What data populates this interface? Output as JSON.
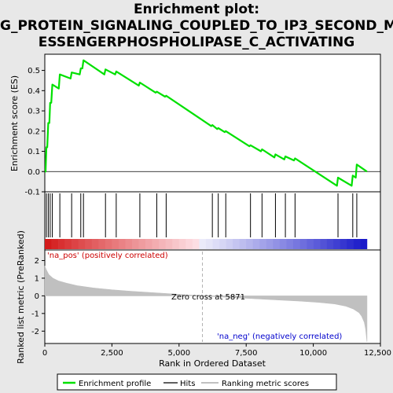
{
  "title_lines": [
    "Enrichment plot:",
    "G_PROTEIN_SIGNALING_COUPLED_TO_IP3_SECOND_M",
    "ESSENGERPHOSPHOLIPASE_C_ACTIVATING"
  ],
  "colors": {
    "enrichment": "#00e000",
    "hits": "#000000",
    "ranking": "#c0c0c0",
    "pos_label": "#cc0000",
    "neg_label": "#0000cc",
    "zero_cross_line": "#b0b0b0"
  },
  "annotations": {
    "pos_label": "'na_pos' (positively correlated)",
    "neg_label": "'na_neg' (negatively correlated)",
    "zero_cross": "Zero cross at 5871"
  },
  "legend": {
    "enrichment_label": "Enrichment profile",
    "hits_label": "Hits",
    "ranking_label": "Ranking metric scores"
  },
  "chart_data": [
    {
      "type": "line",
      "name": "enrichment-profile",
      "ylabel": "Enrichment score (ES)",
      "xlim": [
        0,
        12500
      ],
      "ylim": [
        -0.1,
        0.58
      ],
      "yticks": [
        -0.1,
        0.0,
        0.1,
        0.2,
        0.3,
        0.4,
        0.5
      ],
      "ytick_labels": [
        "-0.1",
        "0.0",
        "0.1",
        "0.2",
        "0.3",
        "0.4",
        "0.5"
      ],
      "grid": false,
      "x": [
        0,
        30,
        60,
        90,
        130,
        170,
        200,
        240,
        280,
        520,
        560,
        960,
        1000,
        1300,
        1340,
        1400,
        1440,
        2220,
        2260,
        2620,
        2660,
        3500,
        3540,
        4130,
        4170,
        4480,
        4520,
        6200,
        6240,
        6420,
        6460,
        6700,
        6740,
        7620,
        7660,
        8050,
        8090,
        8550,
        8590,
        8920,
        8960,
        9280,
        9320,
        10880,
        10920,
        11430,
        11470,
        11580,
        11620,
        12000
      ],
      "y": [
        0.0,
        0.0,
        0.12,
        0.12,
        0.24,
        0.24,
        0.34,
        0.34,
        0.43,
        0.41,
        0.48,
        0.46,
        0.49,
        0.48,
        0.51,
        0.51,
        0.55,
        0.48,
        0.505,
        0.48,
        0.495,
        0.425,
        0.44,
        0.39,
        0.395,
        0.37,
        0.375,
        0.225,
        0.23,
        0.21,
        0.215,
        0.195,
        0.2,
        0.125,
        0.13,
        0.1,
        0.11,
        0.07,
        0.085,
        0.06,
        0.075,
        0.055,
        0.065,
        -0.07,
        -0.03,
        -0.07,
        -0.02,
        -0.03,
        0.035,
        0.0
      ]
    },
    {
      "type": "scatter",
      "name": "hits",
      "x": [
        60,
        130,
        200,
        280,
        560,
        1000,
        1340,
        1440,
        2260,
        2660,
        3540,
        4170,
        4520,
        6240,
        6460,
        6740,
        7660,
        8090,
        8590,
        8960,
        9320,
        10920,
        11470,
        11620
      ]
    },
    {
      "type": "area",
      "name": "ranking-metric",
      "xlabel": "Rank in Ordered Dataset",
      "ylabel": "Ranked list metric (PreRanked)",
      "xlim": [
        0,
        12500
      ],
      "ylim": [
        -2.7,
        2.6
      ],
      "xticks": [
        0,
        2500,
        5000,
        7500,
        10000,
        12500
      ],
      "xtick_labels": [
        "0",
        "2,500",
        "5,000",
        "7,500",
        "10,000",
        "12,500"
      ],
      "yticks": [
        -2,
        -1,
        0,
        1,
        2
      ],
      "ytick_labels": [
        "-2",
        "-1",
        "0",
        "1",
        "2"
      ],
      "zero_cross": 5871,
      "x": [
        0,
        50,
        150,
        300,
        500,
        800,
        1200,
        1800,
        2500,
        3200,
        4000,
        4800,
        5500,
        5871,
        6500,
        7500,
        8500,
        9500,
        10200,
        10800,
        11200,
        11500,
        11700,
        11800,
        11900,
        11950,
        12000
      ],
      "y": [
        1.7,
        1.5,
        1.2,
        1.0,
        0.85,
        0.72,
        0.58,
        0.45,
        0.34,
        0.26,
        0.18,
        0.1,
        0.04,
        0.0,
        -0.06,
        -0.14,
        -0.22,
        -0.3,
        -0.37,
        -0.46,
        -0.58,
        -0.75,
        -0.95,
        -1.15,
        -1.5,
        -1.9,
        -2.6
      ]
    }
  ]
}
